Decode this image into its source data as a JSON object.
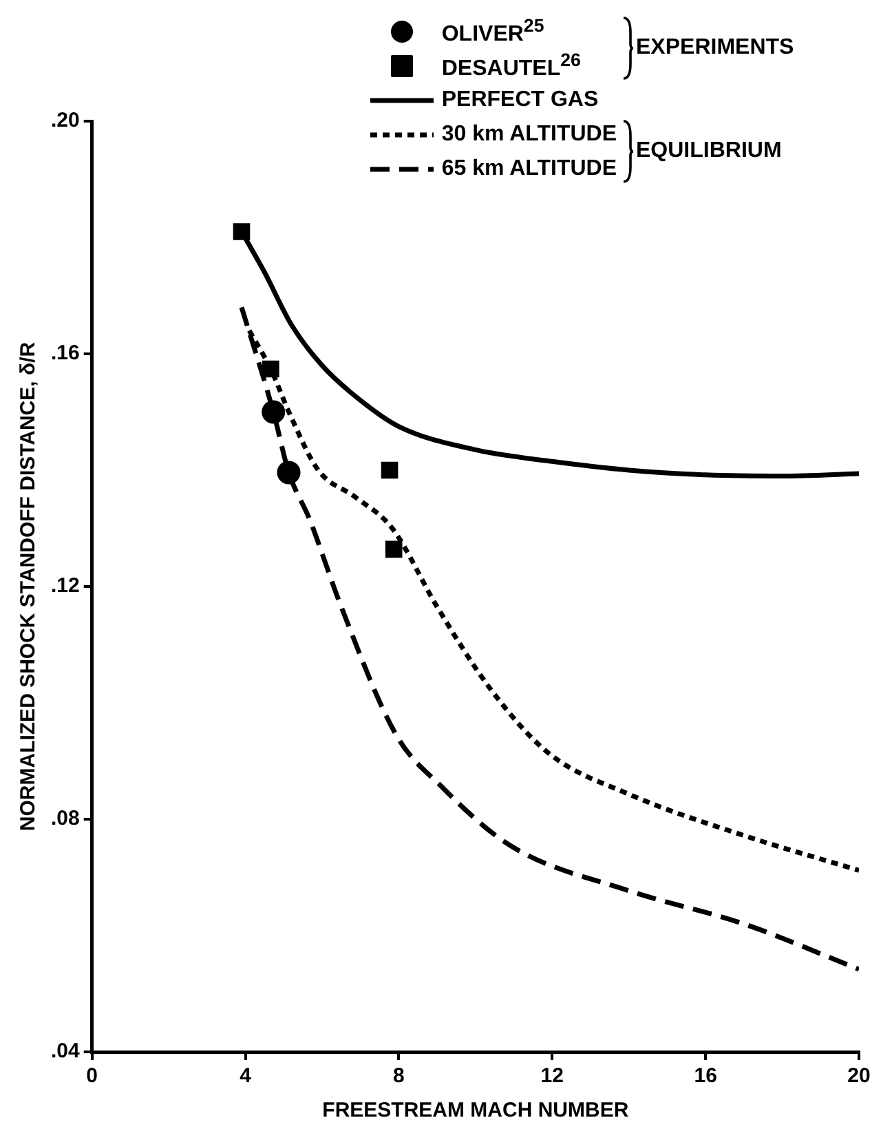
{
  "chart_data": {
    "type": "line",
    "xlabel": "FREESTREAM MACH NUMBER",
    "ylabel": "NORMALIZED SHOCK STANDOFF DISTANCE, δ/R",
    "xlim": [
      0,
      20
    ],
    "xticks": [
      0,
      4,
      8,
      12,
      16,
      20
    ],
    "ylim": [
      0.04,
      0.2
    ],
    "yticks": [
      {
        "value": 0.04,
        "label": ".04"
      },
      {
        "value": 0.08,
        "label": ".08"
      },
      {
        "value": 0.12,
        "label": ".12"
      },
      {
        "value": 0.16,
        "label": ".16"
      },
      {
        "value": 0.2,
        "label": ".20"
      }
    ],
    "grid": false,
    "legend": "top right",
    "annotations": [
      "EXPERIMENTS",
      "EQUILIBRIUM"
    ],
    "series": [
      {
        "name": "OLIVER$^{25}$",
        "type": "scatter",
        "marker": "circle",
        "color": "#000000",
        "x": [
          4.73,
          5.13
        ],
        "values": [
          0.15,
          0.1396
        ]
      },
      {
        "name": "DESAUTEL$^{26}$",
        "type": "scatter",
        "marker": "square",
        "color": "#000000",
        "x": [
          3.9,
          4.66,
          7.76,
          7.87
        ],
        "values": [
          0.181,
          0.1574,
          0.14,
          0.1264
        ]
      },
      {
        "name": "PERFECT GAS",
        "line_style": "solid",
        "color": "#000000",
        "x": [
          3.9,
          4.5,
          5.2,
          6,
          7,
          8,
          10,
          12,
          14,
          16,
          18,
          20
        ],
        "values": [
          0.181,
          0.174,
          0.165,
          0.158,
          0.152,
          0.1475,
          0.1435,
          0.1415,
          0.14,
          0.1392,
          0.139,
          0.1394
        ]
      },
      {
        "name": "30 km ALTITUDE",
        "line_style": "dotted",
        "color": "#000000",
        "x": [
          4.1,
          4.66,
          5.16,
          5.9,
          6.86,
          7.83,
          9.0,
          10.4,
          11.9,
          14.0,
          17.0,
          20.0
        ],
        "values": [
          0.164,
          0.1574,
          0.1496,
          0.14,
          0.1354,
          0.13,
          0.1165,
          0.1023,
          0.0914,
          0.0843,
          0.0772,
          0.0712
        ]
      },
      {
        "name": "65 km ALTITUDE",
        "line_style": "dashed",
        "color": "#000000",
        "x": [
          3.9,
          4.73,
          5.13,
          5.67,
          6.5,
          7.94,
          9.1,
          10.9,
          14.0,
          17.0,
          20.0
        ],
        "values": [
          0.168,
          0.15,
          0.1396,
          0.1316,
          0.1165,
          0.0944,
          0.0857,
          0.0755,
          0.0677,
          0.062,
          0.0542
        ]
      }
    ]
  }
}
